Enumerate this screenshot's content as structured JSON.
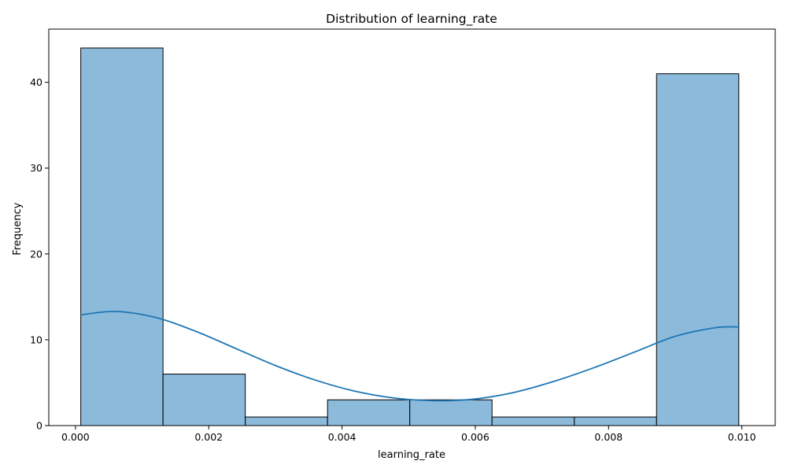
{
  "chart_data": {
    "type": "bar",
    "title": "Distribution of learning_rate",
    "xlabel": "learning_rate",
    "ylabel": "Frequency",
    "xlim": [
      -0.0004,
      0.0105
    ],
    "ylim": [
      0,
      46.2
    ],
    "grid": false,
    "x_ticks": [
      0.0,
      0.002,
      0.004,
      0.006,
      0.008,
      0.01
    ],
    "x_tick_labels": [
      "0.000",
      "0.002",
      "0.004",
      "0.006",
      "0.008",
      "0.010"
    ],
    "y_ticks": [
      0,
      10,
      20,
      30,
      40
    ],
    "y_tick_labels": [
      "0",
      "10",
      "20",
      "30",
      "40"
    ],
    "bins": [
      {
        "x0": 8e-05,
        "x1": 0.001314,
        "count": 44
      },
      {
        "x0": 0.001314,
        "x1": 0.002548,
        "count": 6
      },
      {
        "x0": 0.002548,
        "x1": 0.003783,
        "count": 1
      },
      {
        "x0": 0.003783,
        "x1": 0.005017,
        "count": 3
      },
      {
        "x0": 0.005017,
        "x1": 0.006251,
        "count": 3
      },
      {
        "x0": 0.006251,
        "x1": 0.007486,
        "count": 1
      },
      {
        "x0": 0.007486,
        "x1": 0.00872,
        "count": 1
      },
      {
        "x0": 0.00872,
        "x1": 0.009954,
        "count": 41
      }
    ],
    "kde": {
      "x": [
        8e-05,
        0.0006,
        0.0012,
        0.0018,
        0.0024,
        0.003,
        0.0036,
        0.0042,
        0.0048,
        0.0054,
        0.006,
        0.0066,
        0.0072,
        0.0078,
        0.0084,
        0.009,
        0.0096,
        0.009954
      ],
      "y": [
        12.9,
        13.3,
        12.6,
        11.0,
        9.0,
        7.0,
        5.3,
        4.0,
        3.2,
        2.9,
        3.1,
        3.9,
        5.2,
        6.8,
        8.6,
        10.4,
        11.4,
        11.5
      ]
    },
    "colors": {
      "bar_fill": "#8cbadb",
      "bar_edge": "#000000",
      "kde_line": "#1f77b4"
    }
  }
}
